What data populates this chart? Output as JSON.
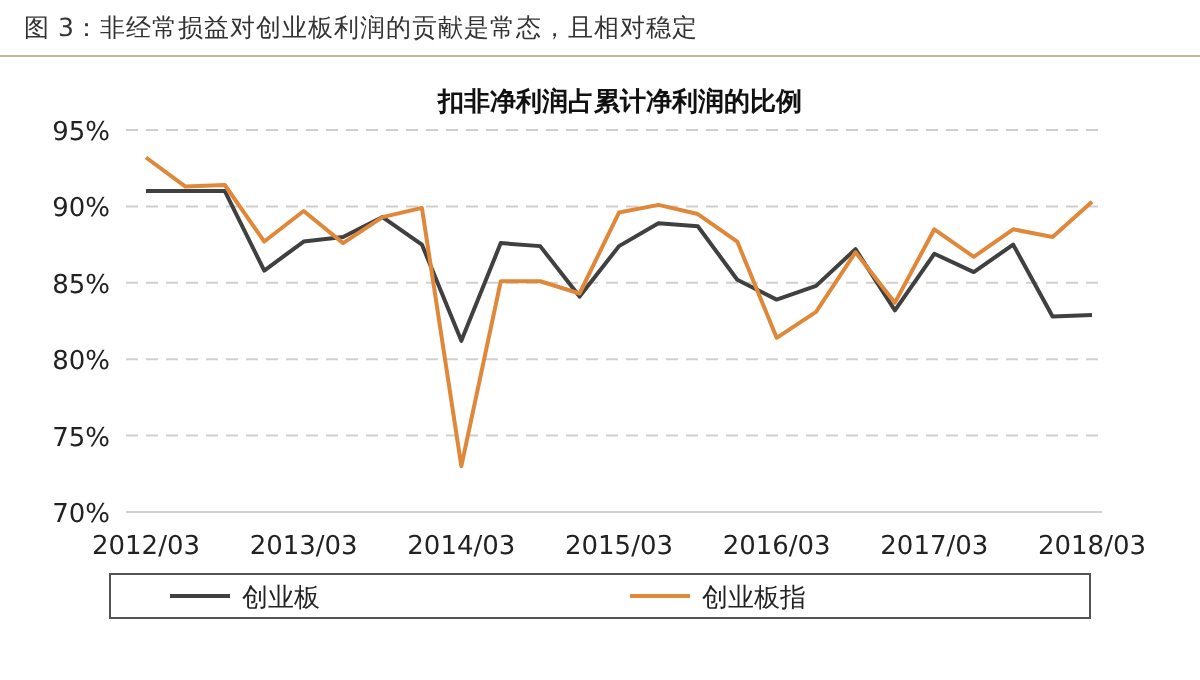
{
  "chart_data": {
    "type": "line",
    "title": "图 3：非经常损益对创业板利润的贡献是常态，且相对稳定",
    "subtitle": "扣非净利润占累计净利润的比例",
    "categories": [
      "2012/03",
      null,
      null,
      null,
      "2013/03",
      null,
      null,
      null,
      "2014/03",
      null,
      null,
      null,
      "2015/03",
      null,
      null,
      null,
      "2016/03",
      null,
      null,
      null,
      "2017/03",
      null,
      null,
      null,
      "2018/03"
    ],
    "series": [
      {
        "name": "创业板",
        "color": "#404040",
        "values": [
          91.0,
          91.0,
          91.0,
          85.8,
          87.7,
          88.0,
          89.3,
          87.5,
          81.2,
          87.6,
          87.4,
          84.1,
          87.4,
          88.9,
          88.7,
          85.2,
          83.9,
          84.8,
          87.2,
          83.2,
          86.9,
          85.7,
          87.5,
          82.8,
          82.9
        ]
      },
      {
        "name": "创业板指",
        "color": "#e0883a",
        "values": [
          93.2,
          91.3,
          91.4,
          87.7,
          89.7,
          87.6,
          89.3,
          89.9,
          73.0,
          85.1,
          85.1,
          84.3,
          89.6,
          90.1,
          89.5,
          87.7,
          81.4,
          83.1,
          87.0,
          83.7,
          88.5,
          86.7,
          88.5,
          88.0,
          90.3
        ]
      }
    ],
    "ylim": [
      70,
      95
    ],
    "yticks": [
      {
        "value": 70,
        "label": "70%"
      },
      {
        "value": 75,
        "label": "75%"
      },
      {
        "value": 80,
        "label": "80%"
      },
      {
        "value": 85,
        "label": "85%"
      },
      {
        "value": 90,
        "label": "90%"
      },
      {
        "value": 95,
        "label": "95%"
      }
    ],
    "grid": "y",
    "legend": "bottom"
  }
}
